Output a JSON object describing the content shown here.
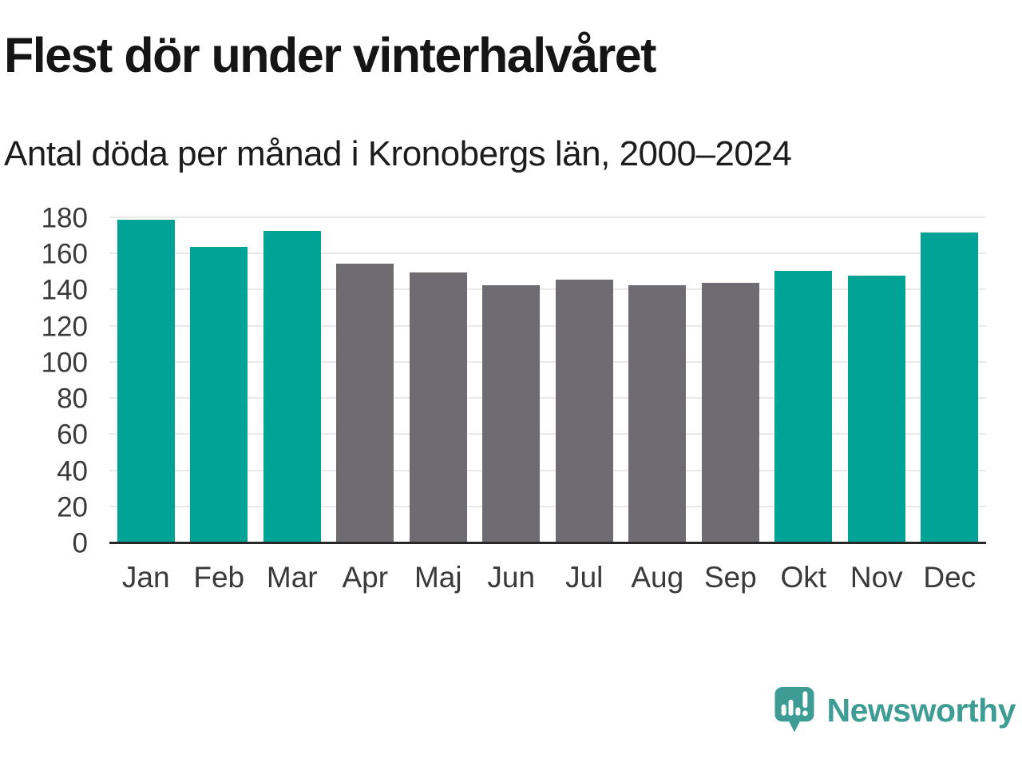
{
  "header": {
    "title": "Flest dör under vinterhalvåret",
    "subtitle": "Antal döda per månad i Kronobergs län, 2000–2024"
  },
  "chart_data": {
    "type": "bar",
    "title": "Flest dör under vinterhalvåret",
    "subtitle": "Antal döda per månad i Kronobergs län, 2000–2024",
    "categories": [
      "Jan",
      "Feb",
      "Mar",
      "Apr",
      "Maj",
      "Jun",
      "Jul",
      "Aug",
      "Sep",
      "Okt",
      "Nov",
      "Dec"
    ],
    "values": [
      179,
      164,
      173,
      155,
      150,
      143,
      146,
      143,
      144,
      151,
      148,
      172
    ],
    "bar_colors": [
      "#00a396",
      "#00a396",
      "#00a396",
      "#6e6c72",
      "#6e6c72",
      "#6e6c72",
      "#6e6c72",
      "#6e6c72",
      "#6e6c72",
      "#00a396",
      "#00a396",
      "#00a396"
    ],
    "palette": {
      "winter_months": "#00a396",
      "summer_months": "#6e6c72",
      "gridline": "#e9e9e9",
      "axis_line": "#28282a"
    },
    "xlabel": "",
    "ylabel": "",
    "ylim": [
      0,
      180
    ],
    "yticks": [
      0,
      20,
      40,
      60,
      80,
      100,
      120,
      140,
      160,
      180
    ],
    "grid": true,
    "legend": "none"
  },
  "branding": {
    "logo_text": "Newsworthy",
    "logo_icon": "speech-bubble-bar-chart-icon",
    "logo_color": "#3d9c93"
  }
}
